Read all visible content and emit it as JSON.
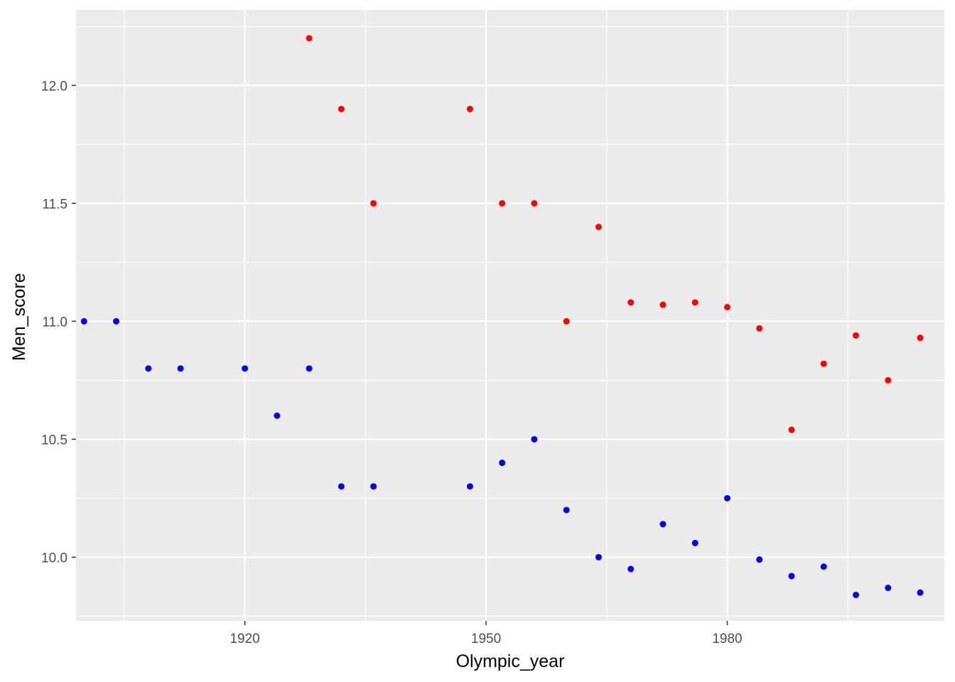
{
  "chart_data": {
    "type": "scatter",
    "title": "",
    "xlabel": "Olympic_year",
    "ylabel": "Men_score",
    "xlim": [
      1899,
      2007
    ],
    "ylim": [
      9.73,
      12.32
    ],
    "x_ticks": [
      1920,
      1950,
      1980
    ],
    "x_tick_labels": [
      "1920",
      "1950",
      "1980"
    ],
    "y_ticks": [
      10.0,
      10.5,
      11.0,
      11.5,
      12.0
    ],
    "y_tick_labels": [
      "10.0",
      "10.5",
      "11.0",
      "11.5",
      "12.0"
    ],
    "grid": true,
    "panel_background": "#ebebeb",
    "series": [
      {
        "color": "#ff0000",
        "points": [
          {
            "x": 1928,
            "y": 12.2
          },
          {
            "x": 1932,
            "y": 11.9
          },
          {
            "x": 1936,
            "y": 11.5
          },
          {
            "x": 1948,
            "y": 11.9
          },
          {
            "x": 1952,
            "y": 11.5
          },
          {
            "x": 1956,
            "y": 11.5
          },
          {
            "x": 1960,
            "y": 11.0
          },
          {
            "x": 1964,
            "y": 11.4
          },
          {
            "x": 1968,
            "y": 11.08
          },
          {
            "x": 1972,
            "y": 11.07
          },
          {
            "x": 1976,
            "y": 11.08
          },
          {
            "x": 1980,
            "y": 11.06
          },
          {
            "x": 1984,
            "y": 10.97
          },
          {
            "x": 1988,
            "y": 10.54
          },
          {
            "x": 1992,
            "y": 10.82
          },
          {
            "x": 1996,
            "y": 10.94
          },
          {
            "x": 2000,
            "y": 10.75
          },
          {
            "x": 2004,
            "y": 10.93
          }
        ]
      },
      {
        "color": "#0000ff",
        "points": [
          {
            "x": 1900,
            "y": 11.0
          },
          {
            "x": 1904,
            "y": 11.0
          },
          {
            "x": 1908,
            "y": 10.8
          },
          {
            "x": 1912,
            "y": 10.8
          },
          {
            "x": 1920,
            "y": 10.8
          },
          {
            "x": 1924,
            "y": 10.6
          },
          {
            "x": 1928,
            "y": 10.8
          },
          {
            "x": 1932,
            "y": 10.3
          },
          {
            "x": 1936,
            "y": 10.3
          },
          {
            "x": 1948,
            "y": 10.3
          },
          {
            "x": 1952,
            "y": 10.4
          },
          {
            "x": 1956,
            "y": 10.5
          },
          {
            "x": 1960,
            "y": 10.2
          },
          {
            "x": 1964,
            "y": 10.0
          },
          {
            "x": 1968,
            "y": 9.95
          },
          {
            "x": 1972,
            "y": 10.14
          },
          {
            "x": 1976,
            "y": 10.06
          },
          {
            "x": 1980,
            "y": 10.25
          },
          {
            "x": 1984,
            "y": 9.99
          },
          {
            "x": 1988,
            "y": 9.92
          },
          {
            "x": 1992,
            "y": 9.96
          },
          {
            "x": 1996,
            "y": 9.84
          },
          {
            "x": 2000,
            "y": 9.87
          },
          {
            "x": 2004,
            "y": 9.85
          }
        ]
      }
    ]
  }
}
